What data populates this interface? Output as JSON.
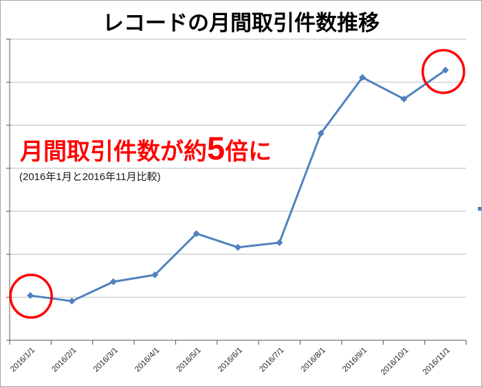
{
  "title": "レコードの月間取引件数推移",
  "annotation": {
    "headline_prefix": "月間取引件数が約",
    "headline_big": "5",
    "headline_suffix": "倍に",
    "subtext": "(2016年1月と2016年11月比較)"
  },
  "colors": {
    "series": "#4F81BD",
    "annotation_red": "#FF0000",
    "gridline": "#C6C6C6",
    "axis": "#8C8C8C",
    "tick": "#6B6B6B",
    "tick_label": "#262626",
    "title_color": "#000000",
    "border": "#A7A7A7",
    "background": "#FFFFFF"
  },
  "chart_data": {
    "type": "line",
    "title": "レコードの月間取引件数推移",
    "categories": [
      "2016/1/1",
      "2016/2/1",
      "2016/3/1",
      "2016/4/1",
      "2016/5/1",
      "2016/6/1",
      "2016/7/1",
      "2016/8/1",
      "2016/9/1",
      "2016/10/1",
      "2016/11/1"
    ],
    "values": [
      104,
      91,
      136,
      152,
      248,
      216,
      227,
      481,
      611,
      561,
      628
    ],
    "xlabel": "",
    "ylabel": "",
    "ylim": [
      0,
      700
    ],
    "y_gridline_interval": 100,
    "y_tick_labels_visible": false,
    "value_note": "y-axis numeric labels are cropped out of the image; values estimated in gridline units (1 gridline = 100)",
    "grid": "horizontal",
    "marker": "diamond",
    "legend": "cut off at right edge of image",
    "highlighted_point_indices": [
      0,
      10
    ],
    "x_label_rotation_deg": -45
  }
}
